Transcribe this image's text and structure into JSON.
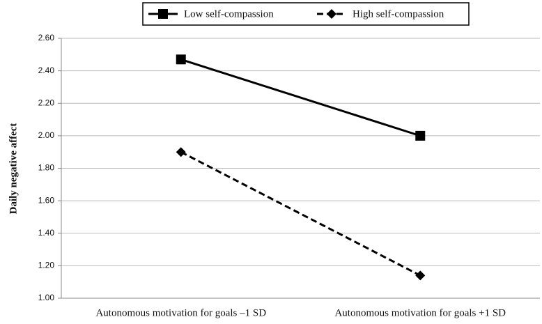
{
  "chart_data": {
    "type": "line",
    "y_label": "Daily negative affect",
    "categories": [
      "Autonomous motivation for goals –1 SD",
      "Autonomous motivation for goals +1 SD"
    ],
    "series": [
      {
        "name": "Low self-compassion",
        "color": "#000000",
        "line_style": "solid",
        "marker": "square",
        "values": [
          2.47,
          2.0
        ]
      },
      {
        "name": "High self-compassion",
        "color": "#000000",
        "line_style": "dashed",
        "marker": "diamond",
        "values": [
          1.9,
          1.14
        ]
      }
    ],
    "ylim": [
      1.0,
      2.6
    ],
    "yticks": [
      {
        "value": 1.0,
        "label": "1.00"
      },
      {
        "value": 1.2,
        "label": "1.20"
      },
      {
        "value": 1.4,
        "label": "1.40"
      },
      {
        "value": 1.6,
        "label": "1.60"
      },
      {
        "value": 1.8,
        "label": "1.80"
      },
      {
        "value": 2.0,
        "label": "2.00"
      },
      {
        "value": 2.2,
        "label": "2.20"
      },
      {
        "value": 2.4,
        "label": "2.40"
      },
      {
        "value": 2.6,
        "label": "2.60"
      }
    ],
    "grid": true,
    "legend": "top"
  }
}
